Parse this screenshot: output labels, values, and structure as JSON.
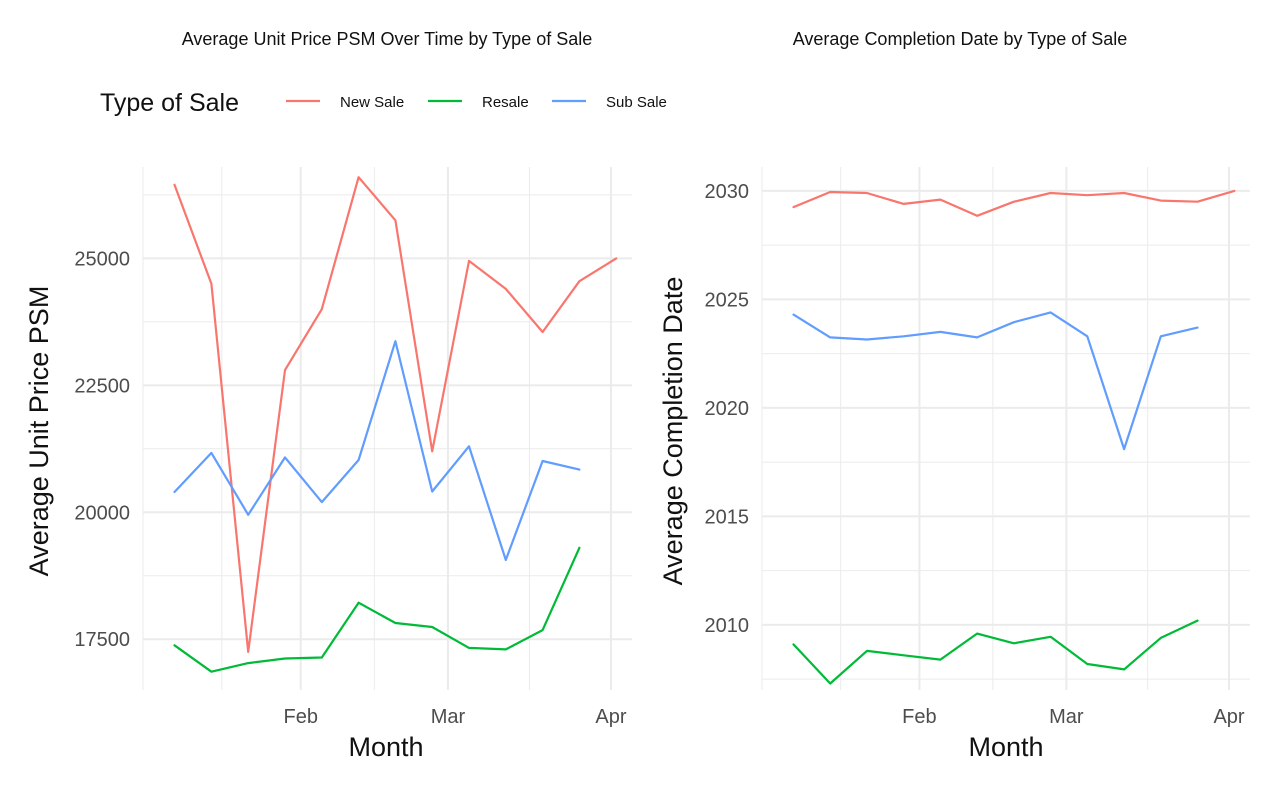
{
  "legend": {
    "title": "Type of Sale",
    "entries": [
      {
        "name": "New Sale",
        "color": "#F8766D"
      },
      {
        "name": "Resale",
        "color": "#00BA38"
      },
      {
        "name": "Sub Sale",
        "color": "#619CFF"
      }
    ],
    "placement": "top-left"
  },
  "chart_data": [
    {
      "type": "line",
      "title": "Average Unit Price PSM Over Time by Type of Sale",
      "xlabel": "Month",
      "ylabel": "Average Unit Price PSM",
      "x_tick_labels": [
        "Feb",
        "Mar",
        "Apr"
      ],
      "y_tick_labels": [
        "17500",
        "20000",
        "22500",
        "25000"
      ],
      "ylim": [
        16500,
        26800
      ],
      "grid": true,
      "x": [
        "2023-01-08",
        "2023-01-15",
        "2023-01-22",
        "2023-01-29",
        "2023-02-05",
        "2023-02-12",
        "2023-02-19",
        "2023-02-26",
        "2023-03-05",
        "2023-03-12",
        "2023-03-19",
        "2023-03-26",
        "2023-04-02"
      ],
      "series": [
        {
          "name": "New Sale",
          "values": [
            26450,
            24500,
            17250,
            22800,
            24000,
            26600,
            25750,
            21200,
            24950,
            24400,
            23550,
            24550,
            25000
          ]
        },
        {
          "name": "Resale",
          "values": [
            17380,
            16860,
            17030,
            17120,
            17140,
            18220,
            17820,
            17740,
            17330,
            17300,
            17680,
            19300,
            null
          ]
        },
        {
          "name": "Sub Sale",
          "values": [
            20400,
            21170,
            19950,
            21080,
            20200,
            21030,
            23370,
            20410,
            21300,
            19060,
            21010,
            20840,
            null
          ]
        }
      ]
    },
    {
      "type": "line",
      "title": "Average Completion Date by Type of Sale",
      "xlabel": "Month",
      "ylabel": "Average Completion Date",
      "x_tick_labels": [
        "Feb",
        "Mar",
        "Apr"
      ],
      "y_tick_labels": [
        "2010",
        "2015",
        "2020",
        "2025",
        "2030"
      ],
      "ylim": [
        2007.0,
        2031.1
      ],
      "grid": true,
      "x": [
        "2023-01-08",
        "2023-01-15",
        "2023-01-22",
        "2023-01-29",
        "2023-02-05",
        "2023-02-12",
        "2023-02-19",
        "2023-02-26",
        "2023-03-05",
        "2023-03-12",
        "2023-03-19",
        "2023-03-26",
        "2023-04-02"
      ],
      "series": [
        {
          "name": "New Sale",
          "values": [
            2029.25,
            2029.95,
            2029.9,
            2029.4,
            2029.6,
            2028.85,
            2029.5,
            2029.9,
            2029.8,
            2029.9,
            2029.55,
            2029.5,
            2030.0
          ]
        },
        {
          "name": "Resale",
          "values": [
            2009.1,
            2007.3,
            2008.8,
            2008.6,
            2008.4,
            2009.6,
            2009.15,
            2009.45,
            2008.2,
            2007.95,
            2009.4,
            2010.2,
            null
          ]
        },
        {
          "name": "Sub Sale",
          "values": [
            2024.3,
            2023.25,
            2023.15,
            2023.3,
            2023.5,
            2023.25,
            2023.95,
            2024.4,
            2023.3,
            2018.1,
            2023.3,
            2023.7,
            null
          ]
        }
      ]
    }
  ]
}
